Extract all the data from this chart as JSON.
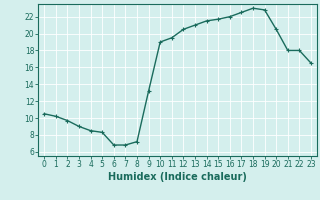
{
  "x": [
    0,
    1,
    2,
    3,
    4,
    5,
    6,
    7,
    8,
    9,
    10,
    11,
    12,
    13,
    14,
    15,
    16,
    17,
    18,
    19,
    20,
    21,
    22,
    23
  ],
  "y": [
    10.5,
    10.2,
    9.7,
    9.0,
    8.5,
    8.3,
    6.8,
    6.8,
    7.2,
    13.2,
    19.0,
    19.5,
    20.5,
    21.0,
    21.5,
    21.7,
    22.0,
    22.5,
    23.0,
    22.8,
    20.5,
    18.0,
    18.0,
    16.5
  ],
  "line_color": "#1a6b5c",
  "marker": "+",
  "marker_size": 3,
  "bg_color": "#d4efed",
  "grid_color": "#ffffff",
  "xlabel": "Humidex (Indice chaleur)",
  "xlim": [
    -0.5,
    23.5
  ],
  "ylim": [
    5.5,
    23.5
  ],
  "yticks": [
    6,
    8,
    10,
    12,
    14,
    16,
    18,
    20,
    22
  ],
  "xticks": [
    0,
    1,
    2,
    3,
    4,
    5,
    6,
    7,
    8,
    9,
    10,
    11,
    12,
    13,
    14,
    15,
    16,
    17,
    18,
    19,
    20,
    21,
    22,
    23
  ],
  "tick_color": "#1a6b5c",
  "label_fontsize": 5.5,
  "xlabel_fontsize": 7,
  "line_width": 1.0
}
